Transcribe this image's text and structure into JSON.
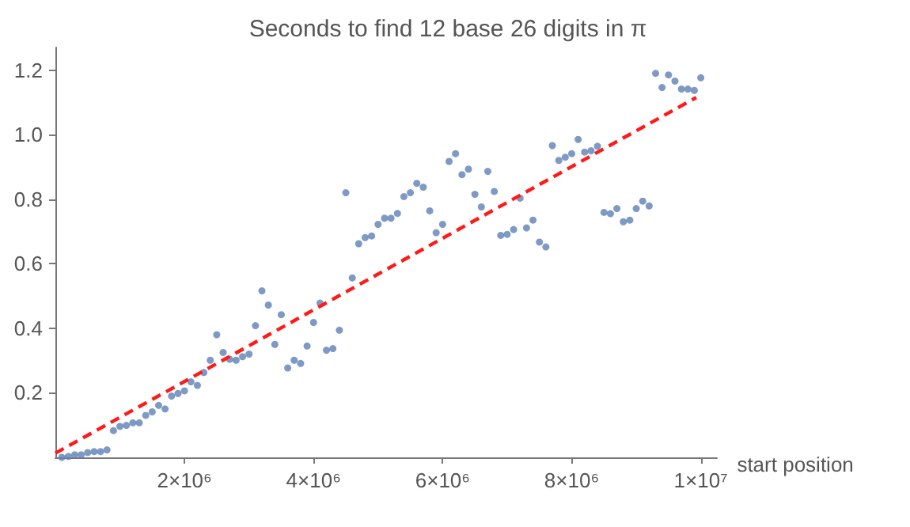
{
  "chart_data": {
    "type": "scatter",
    "title": "Seconds to find 12 base 26 digits in π",
    "xlabel": "start position",
    "xlim": [
      0,
      10250000
    ],
    "ylim": [
      0,
      1.27
    ],
    "xticks": [
      {
        "value": 2000000,
        "label": "2×10⁶"
      },
      {
        "value": 4000000,
        "label": "4×10⁶"
      },
      {
        "value": 6000000,
        "label": "6×10⁶"
      },
      {
        "value": 8000000,
        "label": "8×10⁶"
      },
      {
        "value": 10000000,
        "label": "1×10⁷"
      }
    ],
    "yticks": [
      0.2,
      0.4,
      0.6,
      0.8,
      {
        "value": 1,
        "label": "1.0"
      },
      1.2
    ],
    "grid": false,
    "series": [
      {
        "color": "#5e81b5",
        "marker": "circle",
        "x": [
          100000,
          200000,
          300000,
          400000,
          500000,
          600000,
          700000,
          800000,
          900000,
          1000000,
          1100000,
          1200000,
          1300000,
          1400000,
          1500000,
          1600000,
          1700000,
          1800000,
          1900000,
          2000000,
          2100000,
          2200000,
          2300000,
          2400000,
          2500000,
          2600000,
          2700000,
          2800000,
          2900000,
          3000000,
          3100000,
          3200000,
          3300000,
          3400000,
          3500000,
          3600000,
          3700000,
          3800000,
          3900000,
          4000000,
          4100000,
          4200000,
          4300000,
          4400000,
          4500000,
          4600000,
          4700000,
          4800000,
          4900000,
          5000000,
          5100000,
          5200000,
          5300000,
          5400000,
          5500000,
          5600000,
          5700000,
          5800000,
          5900000,
          6000000,
          6100000,
          6200000,
          6300000,
          6400000,
          6500000,
          6600000,
          6700000,
          6800000,
          6900000,
          7000000,
          7100000,
          7200000,
          7300000,
          7400000,
          7500000,
          7600000,
          7700000,
          7800000,
          7900000,
          8000000,
          8100000,
          8200000,
          8300000,
          8400000,
          8500000,
          8600000,
          8700000,
          8800000,
          8900000,
          9000000,
          9100000,
          9200000,
          9300000,
          9400000,
          9500000,
          9600000,
          9700000,
          9800000,
          9900000,
          10000000
        ],
        "values": [
          0.0,
          0.003,
          0.008,
          0.008,
          0.015,
          0.018,
          0.018,
          0.023,
          0.083,
          0.096,
          0.099,
          0.107,
          0.107,
          0.13,
          0.141,
          0.161,
          0.15,
          0.19,
          0.198,
          0.206,
          0.234,
          0.223,
          0.263,
          0.301,
          0.38,
          0.325,
          0.304,
          0.301,
          0.312,
          0.32,
          0.408,
          0.516,
          0.472,
          0.35,
          0.442,
          0.277,
          0.301,
          0.291,
          0.345,
          0.418,
          0.478,
          0.332,
          0.337,
          0.394,
          0.82,
          0.556,
          0.662,
          0.681,
          0.686,
          0.722,
          0.741,
          0.741,
          0.756,
          0.808,
          0.82,
          0.849,
          0.837,
          0.764,
          0.696,
          0.722,
          0.917,
          0.941,
          0.876,
          0.893,
          0.815,
          0.776,
          0.886,
          0.824,
          0.688,
          0.691,
          0.706,
          0.803,
          0.711,
          0.735,
          0.667,
          0.652,
          0.966,
          0.92,
          0.93,
          0.941,
          0.985,
          0.946,
          0.95,
          0.964,
          0.759,
          0.755,
          0.771,
          0.73,
          0.735,
          0.771,
          0.794,
          0.779,
          1.19,
          1.146,
          1.185,
          1.166,
          1.141,
          1.141,
          1.137,
          1.176
        ]
      },
      {
        "type": "line",
        "color": "#ff1a1a",
        "line_style": "dashed",
        "marker": "none",
        "x": [
          0,
          9930000
        ],
        "values": [
          0.013,
          1.115
        ]
      }
    ]
  }
}
